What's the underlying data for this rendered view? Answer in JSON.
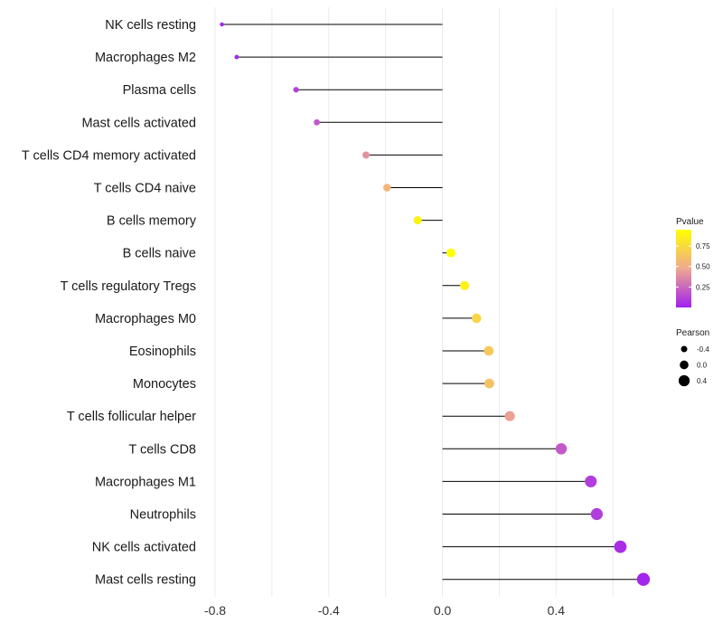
{
  "chart_data": {
    "type": "lollipop",
    "categories": [
      "NK cells resting",
      "Macrophages M2",
      "Plasma cells",
      "Mast cells activated",
      "T cells CD4 memory activated",
      "T cells CD4 naive",
      "B cells memory",
      "B cells naive",
      "T cells regulatory  Tregs ",
      "Macrophages M0",
      "Eosinophils",
      "Monocytes",
      "T cells follicular helper",
      "T cells CD8",
      "Macrophages M1",
      "Neutrophils",
      "NK cells activated",
      "Mast cells resting"
    ],
    "values": [
      -0.776,
      -0.724,
      -0.515,
      -0.442,
      -0.269,
      -0.195,
      -0.087,
      0.03,
      0.078,
      0.12,
      0.163,
      0.165,
      0.237,
      0.418,
      0.522,
      0.543,
      0.626,
      0.707
    ],
    "pvalues": [
      0.02,
      0.03,
      0.12,
      0.2,
      0.4,
      0.55,
      0.88,
      0.97,
      0.88,
      0.72,
      0.65,
      0.62,
      0.45,
      0.2,
      0.1,
      0.1,
      0.05,
      0.02
    ],
    "xlim": [
      -0.8,
      0.72
    ],
    "xticks": [
      -0.8,
      -0.4,
      0.0,
      0.4
    ],
    "xtick_labels": [
      "-0.8",
      "-0.4",
      "0.0",
      "0.4"
    ],
    "xlabel": "",
    "ylabel": "",
    "color_legend": {
      "title": "Pvalue",
      "ticks": [
        0.25,
        0.5,
        0.75
      ],
      "tick_labels": [
        "0.25",
        "0.50",
        "0.75"
      ],
      "range": [
        0.0,
        0.95
      ],
      "low_color": "#a020f0",
      "high_color": "#ffff00"
    },
    "size_legend": {
      "title": "Pearson",
      "values": [
        -0.4,
        0.0,
        0.4
      ],
      "labels": [
        "-0.4",
        "0.0",
        "0.4"
      ]
    },
    "colors": {
      "segment": "#000000",
      "grid": "#ebebeb",
      "point_mid": "#f0a890"
    }
  }
}
